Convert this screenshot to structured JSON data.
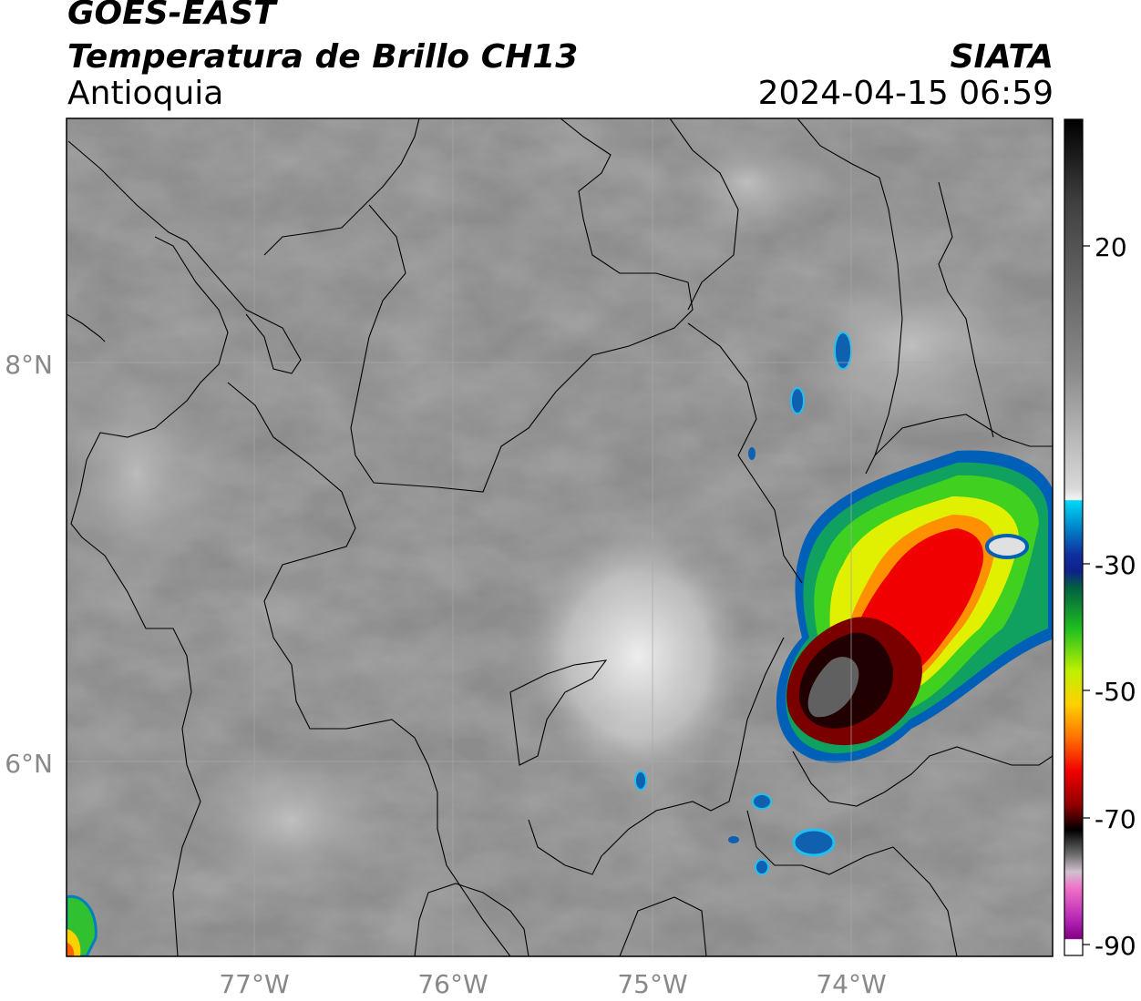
{
  "header": {
    "satellite": "GOES-EAST",
    "product": "Temperatura de Brillo CH13",
    "region": "Antioquia",
    "organization": "SIATA",
    "timestamp": "2024-04-15 06:59"
  },
  "map": {
    "lon_range": [
      -77.95,
      -72.95
    ],
    "lat_range": [
      5.0,
      9.2
    ],
    "lat_ticks": [
      {
        "value": 8,
        "label": "8°N"
      },
      {
        "value": 6,
        "label": "6°N"
      }
    ],
    "lon_ticks": [
      {
        "value": -77,
        "label": "77°W"
      },
      {
        "value": -76,
        "label": "76°W"
      },
      {
        "value": -75,
        "label": "75°W"
      },
      {
        "value": -74,
        "label": "74°W"
      }
    ],
    "grid": true
  },
  "colorbar": {
    "variable": "brightness temperature",
    "ticks": [
      {
        "value": 20,
        "label": "20"
      },
      {
        "value": -30,
        "label": "-30"
      },
      {
        "value": -50,
        "label": "-50"
      },
      {
        "value": -70,
        "label": "-70"
      },
      {
        "value": -90,
        "label": "-90"
      }
    ],
    "colors": {
      "warm_top": "#111111",
      "gray_mid": "#888888",
      "light": "#eeeeee",
      "cyan": "#00c8f0",
      "blue": "#1040a0",
      "green": "#20c020",
      "yellow": "#f0f000",
      "orange": "#ff8000",
      "red": "#e00000",
      "dark_red": "#600000",
      "black": "#000000",
      "pink": "#e080c0",
      "purple": "#901090"
    }
  }
}
